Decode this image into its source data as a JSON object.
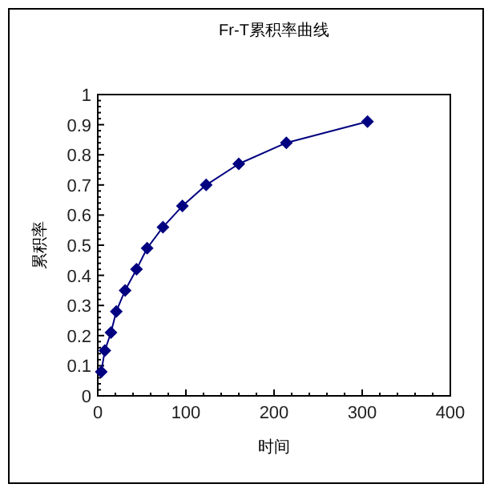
{
  "chart_data": {
    "type": "line",
    "title": "Fr-T累积率曲线",
    "xlabel": "时间",
    "ylabel": "累积率",
    "x": [
      4,
      8,
      15,
      21,
      31,
      44,
      56,
      74,
      96,
      123,
      160,
      214,
      306
    ],
    "series": [
      {
        "color": "#000080",
        "values": [
          0.08,
          0.15,
          0.21,
          0.28,
          0.35,
          0.42,
          0.49,
          0.56,
          0.63,
          0.7,
          0.77,
          0.84,
          0.91
        ]
      }
    ],
    "xlim": [
      0,
      400
    ],
    "ylim": [
      0,
      1
    ],
    "xticks": [
      0,
      100,
      200,
      300,
      400
    ],
    "yticks": [
      0,
      0.1,
      0.2,
      0.3,
      0.4,
      0.5,
      0.6,
      0.7,
      0.8,
      0.9,
      1
    ],
    "marker": "diamond",
    "line_style": "solid",
    "grid": false
  }
}
